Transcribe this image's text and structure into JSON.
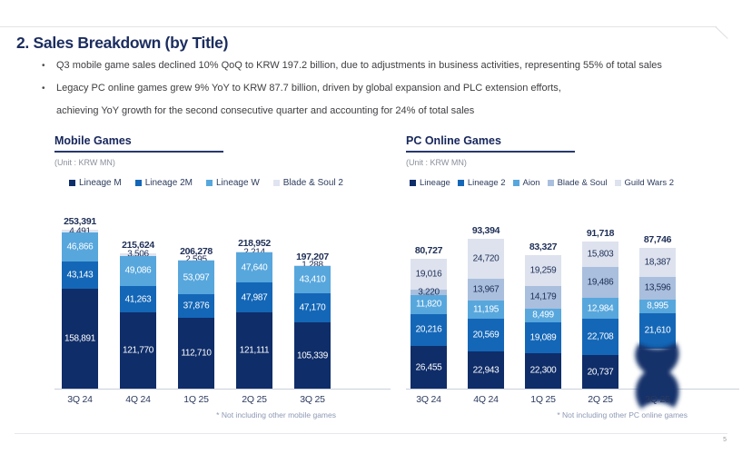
{
  "page": {
    "title": "2. Sales Breakdown (by Title)",
    "bullet_marker": "•",
    "bullets": [
      "Q3 mobile game sales declined 10% QoQ to KRW 197.2 billion, due to adjustments in business activities, representing 55% of total sales",
      "Legacy PC online games grew 9% YoY to KRW 87.7 billion, driven by global expansion and PLC extension efforts,",
      "achieving YoY growth for the second consecutive quarter and accounting for 24% of total sales"
    ],
    "page_number": "5",
    "colors": {
      "title_navy": "#1b2d5f",
      "axis_line": "#c9cfdb",
      "footnote_gray": "#8d99b4",
      "header_rule": "#e4e4e7"
    }
  },
  "chart_data": [
    {
      "type": "bar",
      "stacked": true,
      "stack_order": "bottom-to-top",
      "title": "Mobile Games",
      "unit_label": "(Unit : KRW MN)",
      "footnote": "* Not including other mobile games",
      "legend_position": "top",
      "value_axis_visible": false,
      "categories": [
        "3Q 24",
        "4Q 24",
        "1Q 25",
        "2Q 25",
        "3Q 25"
      ],
      "totals": [
        "253,391",
        "215,624",
        "206,278",
        "218,952",
        "197,207"
      ],
      "series": [
        {
          "name": "Lineage M",
          "color": "#0f2d69",
          "label_color": "#ffffff",
          "values": [
            158891,
            121770,
            112710,
            121111,
            105339
          ]
        },
        {
          "name": "Lineage 2M",
          "color": "#1467b7",
          "label_color": "#ffffff",
          "values": [
            43143,
            41263,
            37876,
            47987,
            47170
          ]
        },
        {
          "name": "Lineage W",
          "color": "#57a7dd",
          "label_color": "#ffffff",
          "values": [
            46866,
            49086,
            53097,
            47640,
            43410
          ]
        },
        {
          "name": "Blade & Soul 2",
          "color": "#dfe4f0",
          "label_color": "#1d2e56",
          "values": [
            4491,
            3506,
            2595,
            2214,
            1288
          ]
        }
      ]
    },
    {
      "type": "bar",
      "stacked": true,
      "stack_order": "bottom-to-top",
      "title": "PC Online Games",
      "unit_label": "(Unit : KRW MN)",
      "footnote": "* Not including other PC online games",
      "legend_position": "top",
      "value_axis_visible": false,
      "categories": [
        "3Q 24",
        "4Q 24",
        "1Q 25",
        "2Q 25",
        "3Q 25"
      ],
      "totals": [
        "80,727",
        "93,394",
        "83,327",
        "91,718",
        "87,746"
      ],
      "series": [
        {
          "name": "Lineage",
          "color": "#0f2d69",
          "label_color": "#ffffff",
          "values": [
            26455,
            22943,
            22300,
            20737,
            25158
          ]
        },
        {
          "name": "Lineage 2",
          "color": "#1467b7",
          "label_color": "#ffffff",
          "values": [
            20216,
            20569,
            19089,
            22708,
            21610
          ]
        },
        {
          "name": "Aion",
          "color": "#57a7dd",
          "label_color": "#ffffff",
          "values": [
            11820,
            11195,
            8499,
            12984,
            8995
          ]
        },
        {
          "name": "Blade & Soul",
          "color": "#a9bfdd",
          "label_color": "#1d2e56",
          "values": [
            3220,
            13967,
            14179,
            19486,
            13596
          ]
        },
        {
          "name": "Guild Wars 2",
          "color": "#dde2ee",
          "label_color": "#1d2e56",
          "values": [
            19016,
            24720,
            19259,
            15803,
            18387
          ]
        }
      ],
      "obscured_segment": {
        "series": "Lineage",
        "category": "3Q 25",
        "approx_value": 25158,
        "note": "value smudged/illegible in source image"
      }
    }
  ]
}
